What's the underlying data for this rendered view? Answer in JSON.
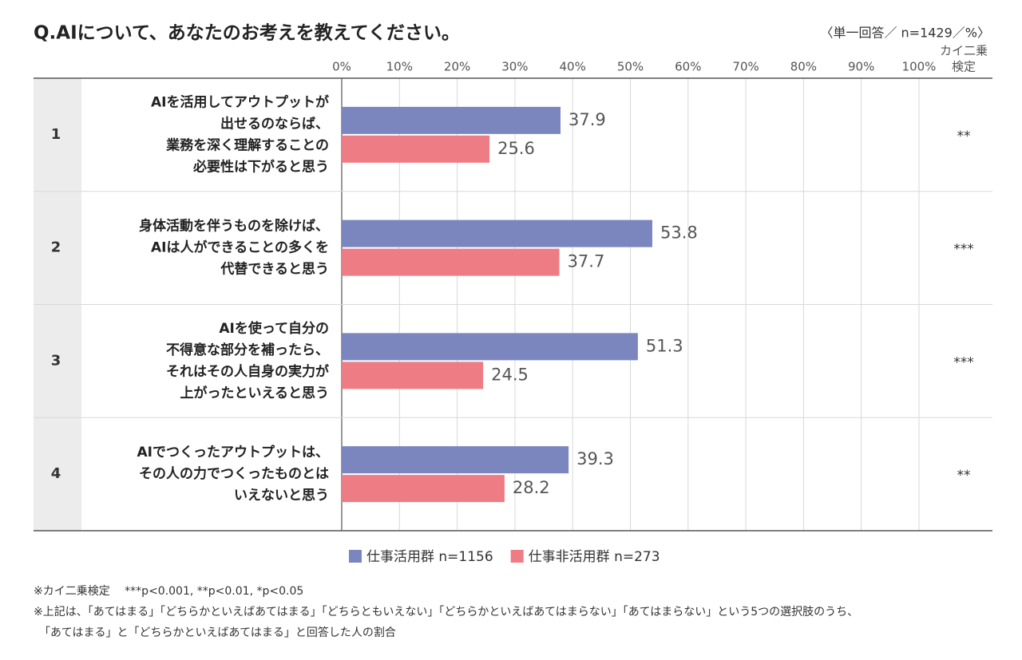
{
  "chart_data": {
    "type": "bar",
    "orientation": "horizontal",
    "title": "Q.AIについて、あなたのお考えを教えてください。",
    "subtitle": "〈単一回答／ n=1429／%〉",
    "significance_header": [
      "カイ二乗",
      "検定"
    ],
    "categories": [
      "1",
      "2",
      "3",
      "4"
    ],
    "row_labels": [
      [
        "AIを活用してアウトプットが",
        "出せるのならば、",
        "業務を深く理解することの",
        "必要性は下がると思う"
      ],
      [
        "身体活動を伴うものを除けば、",
        "AIは人ができることの多くを",
        "代替できると思う"
      ],
      [
        "AIを使って自分の",
        "不得意な部分を補ったら、",
        "それはその人自身の実力が",
        "上がったといえると思う"
      ],
      [
        "AIでつくったアウトプットは、",
        "その人の力でつくったものとは",
        "いえないと思う"
      ]
    ],
    "significance": [
      "**",
      "***",
      "***",
      "**"
    ],
    "series": [
      {
        "name": "仕事活用群 n=1156",
        "color": "#7b86bf",
        "values": [
          37.9,
          53.8,
          51.3,
          39.3
        ]
      },
      {
        "name": "仕事非活用群 n=273",
        "color": "#ee7c85",
        "values": [
          25.6,
          37.7,
          24.5,
          28.2
        ]
      }
    ],
    "xlim": [
      0,
      100
    ],
    "xticks": [
      {
        "value": 0,
        "label": "0%"
      },
      {
        "value": 10,
        "label": "10%"
      },
      {
        "value": 20,
        "label": "20%"
      },
      {
        "value": 30,
        "label": "30%"
      },
      {
        "value": 40,
        "label": "40%"
      },
      {
        "value": 50,
        "label": "50%"
      },
      {
        "value": 60,
        "label": "60%"
      },
      {
        "value": 70,
        "label": "70%"
      },
      {
        "value": 80,
        "label": "80%"
      },
      {
        "value": 90,
        "label": "90%"
      },
      {
        "value": 100,
        "label": "100%"
      }
    ],
    "grid": true,
    "footnotes": [
      "※カイ二乗検定　 ***p<0.001, **p<0.01, *p<0.05",
      "※上記は、「あてはまる」「どちらかといえばあてはまる」「どちらともいえない」「どちらかといえばあてはまらない」「あてはまらない」という5つの選択肢のうち、",
      "　「あてはまる」と「どちらかといえばあてはまる」と回答した人の割合"
    ]
  }
}
